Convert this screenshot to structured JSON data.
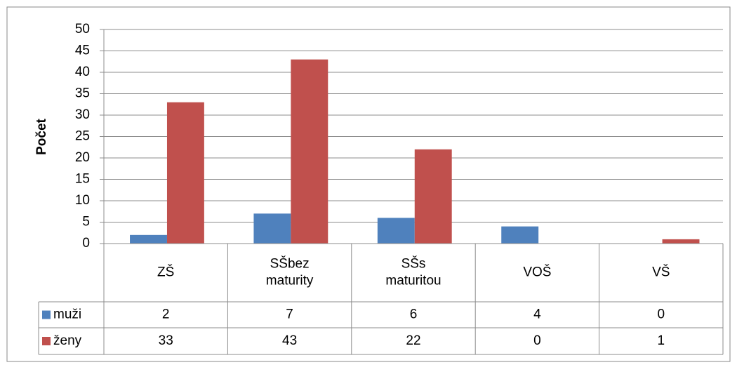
{
  "chart_data": {
    "type": "bar",
    "y_axis_label": "Počet",
    "categories": [
      "ZŠ",
      "SŠbez maturity",
      "SŠs maturitou",
      "VOŠ",
      "VŠ"
    ],
    "series": [
      {
        "name": "muži",
        "color": "#4f81bd",
        "values": [
          2,
          7,
          6,
          4,
          0
        ]
      },
      {
        "name": "ženy",
        "color": "#c0504d",
        "values": [
          33,
          43,
          22,
          0,
          1
        ]
      }
    ],
    "ylim": [
      0,
      50
    ],
    "yticks": [
      0,
      5,
      10,
      15,
      20,
      25,
      30,
      35,
      40,
      45,
      50
    ],
    "grid": true,
    "legend": "table"
  }
}
